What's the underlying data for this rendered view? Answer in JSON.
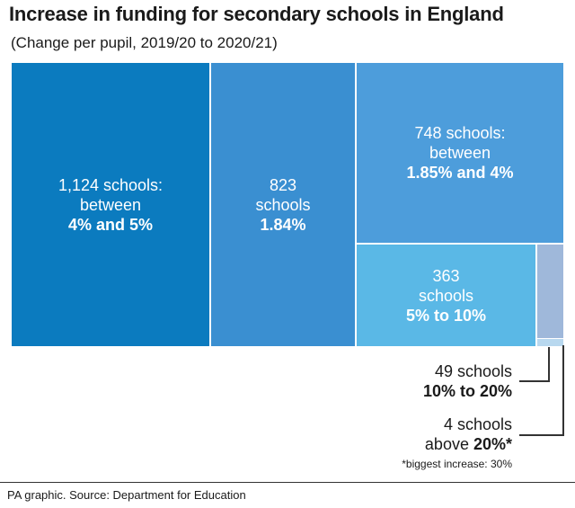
{
  "title": "Increase in funding for secondary schools in England",
  "subtitle": "(Change per pupil, 2019/20 to 2020/21)",
  "chart_data": {
    "type": "treemap",
    "unit": "schools",
    "cells": [
      {
        "count": 1124,
        "line1": "1,124 schools:",
        "line2": "between",
        "line3": "4% and 5%",
        "color": "#0b7bbf"
      },
      {
        "count": 823,
        "line1": "823",
        "line2": "schools",
        "line3": "1.84%",
        "color": "#3a8fd1"
      },
      {
        "count": 748,
        "line1": "748 schools:",
        "line2": "between",
        "line3": "1.85% and 4%",
        "color": "#4d9ddb"
      },
      {
        "count": 363,
        "line1": "363",
        "line2": "schools",
        "line3": "5% to 10%",
        "color": "#5ab8e6"
      },
      {
        "count": 49,
        "line1": "49 schools",
        "line2": "10% to 20%",
        "color": "#9fb8da"
      },
      {
        "count": 4,
        "line1": "4 schools",
        "line2a": "above ",
        "line2b": "20%*",
        "color": "#b8d8ef"
      }
    ],
    "footnote": "*biggest increase: 30%"
  },
  "source": "PA graphic. Source: Department for Education"
}
